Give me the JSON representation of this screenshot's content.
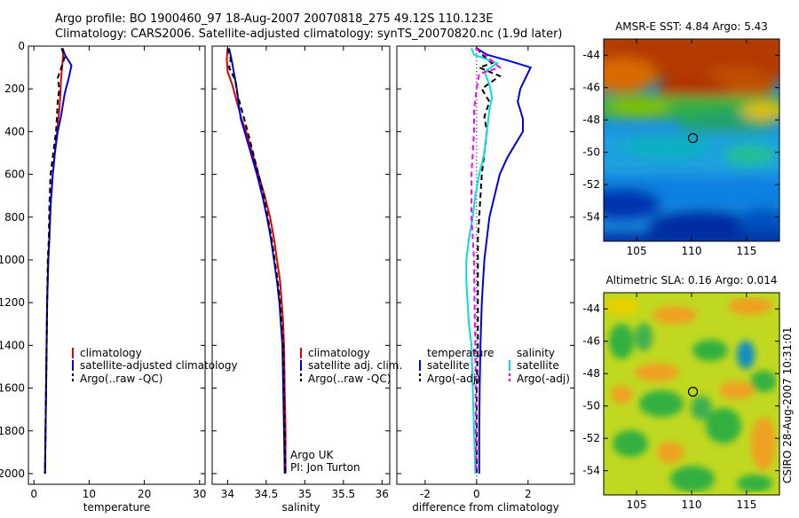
{
  "header": {
    "line1": "Argo profile: BO 1900460_97 18-Aug-2007 20070818_275 49.12S 110.123E",
    "line2": "Climatology: CARS2006. Satellite-adjusted climatology: synTS_20070820.nc (1.9d later)"
  },
  "side_label": "CSIRO 28-Aug-2007 10:31:01",
  "colors": {
    "clim": "#e00000",
    "sat": "#0000e0",
    "argo": "#000000",
    "sal_sat": "#00e0e0",
    "sal_argo": "#ff00ff"
  },
  "chart_data": [
    {
      "type": "line",
      "xlabel": "temperature",
      "xlim": [
        -1,
        31
      ],
      "ylim": [
        2050,
        0
      ],
      "xticks": [
        0,
        10,
        20,
        30
      ],
      "yticks": [
        0,
        200,
        400,
        600,
        800,
        1000,
        1200,
        1400,
        1600,
        1800,
        2000
      ],
      "legend": [
        "climatology",
        "satellite-adjusted climatology",
        "Argo(..raw -QC)"
      ],
      "series": [
        {
          "name": "climatology",
          "color": "#e00000",
          "dash": "",
          "points": [
            [
              5.2,
              10
            ],
            [
              5.3,
              40
            ],
            [
              5.1,
              100
            ],
            [
              4.9,
              160
            ],
            [
              4.8,
              220
            ],
            [
              4.6,
              300
            ],
            [
              4.2,
              400
            ],
            [
              3.8,
              500
            ],
            [
              3.4,
              600
            ],
            [
              3.0,
              750
            ],
            [
              2.8,
              900
            ],
            [
              2.6,
              1000
            ],
            [
              2.4,
              1200
            ],
            [
              2.3,
              1400
            ],
            [
              2.2,
              1600
            ],
            [
              2.1,
              1800
            ],
            [
              2.0,
              2000
            ]
          ]
        },
        {
          "name": "satellite-adjusted climatology",
          "color": "#0000e0",
          "dash": "",
          "points": [
            [
              5.2,
              10
            ],
            [
              5.6,
              40
            ],
            [
              6.8,
              90
            ],
            [
              6.3,
              150
            ],
            [
              5.6,
              220
            ],
            [
              5.2,
              280
            ],
            [
              4.9,
              330
            ],
            [
              4.3,
              400
            ],
            [
              3.8,
              500
            ],
            [
              3.4,
              600
            ],
            [
              3.0,
              750
            ],
            [
              2.8,
              900
            ],
            [
              2.6,
              1000
            ],
            [
              2.4,
              1200
            ],
            [
              2.3,
              1400
            ],
            [
              2.2,
              1600
            ],
            [
              2.1,
              1800
            ],
            [
              2.0,
              2000
            ]
          ]
        },
        {
          "name": "Argo(..raw -QC)",
          "color": "#000000",
          "dash": "6,4",
          "points": [
            [
              5.0,
              10
            ],
            [
              5.6,
              50
            ],
            [
              5.1,
              90
            ],
            [
              4.3,
              150
            ],
            [
              4.6,
              200
            ],
            [
              4.3,
              260
            ],
            [
              4.2,
              320
            ],
            [
              4.0,
              400
            ],
            [
              3.5,
              500
            ],
            [
              3.0,
              600
            ],
            [
              2.8,
              750
            ],
            [
              2.7,
              900
            ],
            [
              2.5,
              1000
            ],
            [
              2.4,
              1200
            ],
            [
              2.3,
              1400
            ],
            [
              2.2,
              1600
            ],
            [
              2.1,
              1800
            ],
            [
              2.0,
              2000
            ]
          ]
        }
      ],
      "annotations": []
    },
    {
      "type": "line",
      "xlabel": "salinity",
      "xlim": [
        33.8,
        36.1
      ],
      "ylim": [
        2050,
        0
      ],
      "xticks": [
        34,
        34.5,
        35,
        35.5,
        36
      ],
      "xticklabels": [
        "34",
        "34.5",
        "35",
        "35.5",
        "36"
      ],
      "yticks": [
        0,
        200,
        400,
        600,
        800,
        1000,
        1200,
        1400,
        1600,
        1800,
        2000
      ],
      "legend": [
        "climatology",
        "satellite adj. clim.",
        "Argo(..raw -QC)"
      ],
      "series": [
        {
          "name": "climatology",
          "color": "#e00000",
          "dash": "",
          "points": [
            [
              34.0,
              10
            ],
            [
              33.99,
              60
            ],
            [
              34.0,
              120
            ],
            [
              34.06,
              180
            ],
            [
              34.12,
              260
            ],
            [
              34.18,
              340
            ],
            [
              34.24,
              400
            ],
            [
              34.32,
              500
            ],
            [
              34.4,
              600
            ],
            [
              34.48,
              700
            ],
            [
              34.55,
              800
            ],
            [
              34.6,
              900
            ],
            [
              34.64,
              1000
            ],
            [
              34.68,
              1100
            ],
            [
              34.7,
              1200
            ],
            [
              34.72,
              1300
            ],
            [
              34.73,
              1400
            ],
            [
              34.74,
              1600
            ],
            [
              34.75,
              1800
            ],
            [
              34.75,
              2000
            ]
          ]
        },
        {
          "name": "satellite adj. clim.",
          "color": "#0000e0",
          "dash": "",
          "points": [
            [
              34.02,
              10
            ],
            [
              34.05,
              60
            ],
            [
              34.08,
              120
            ],
            [
              34.11,
              180
            ],
            [
              34.14,
              260
            ],
            [
              34.17,
              340
            ],
            [
              34.22,
              400
            ],
            [
              34.3,
              500
            ],
            [
              34.38,
              600
            ],
            [
              34.45,
              700
            ],
            [
              34.51,
              800
            ],
            [
              34.56,
              900
            ],
            [
              34.6,
              1000
            ],
            [
              34.64,
              1100
            ],
            [
              34.67,
              1200
            ],
            [
              34.69,
              1300
            ],
            [
              34.71,
              1400
            ],
            [
              34.72,
              1600
            ],
            [
              34.73,
              1800
            ],
            [
              34.74,
              2000
            ]
          ]
        },
        {
          "name": "Argo(..raw -QC)",
          "color": "#000000",
          "dash": "6,4",
          "points": [
            [
              34.0,
              10
            ],
            [
              34.04,
              60
            ],
            [
              34.02,
              100
            ],
            [
              34.1,
              160
            ],
            [
              34.13,
              230
            ],
            [
              34.2,
              320
            ],
            [
              34.26,
              400
            ],
            [
              34.33,
              500
            ],
            [
              34.4,
              600
            ],
            [
              34.47,
              700
            ],
            [
              34.52,
              800
            ],
            [
              34.57,
              900
            ],
            [
              34.61,
              1000
            ],
            [
              34.65,
              1100
            ],
            [
              34.68,
              1200
            ],
            [
              34.7,
              1300
            ],
            [
              34.72,
              1400
            ],
            [
              34.73,
              1600
            ],
            [
              34.74,
              1800
            ],
            [
              34.75,
              2000
            ]
          ]
        }
      ],
      "annotations": [
        "Argo UK",
        "PI: Jon Turton"
      ]
    },
    {
      "type": "line",
      "xlabel": "difference from climatology",
      "xlim": [
        -3.1,
        3.8
      ],
      "ylim": [
        2050,
        0
      ],
      "xticks": [
        -2,
        0,
        2
      ],
      "yticks": [
        0,
        200,
        400,
        600,
        800,
        1000,
        1200,
        1400,
        1600,
        1800,
        2000
      ],
      "legend": [
        "temperature",
        "satellite",
        "Argo(-adj)",
        "salinity",
        "satellite",
        "Argo(-adj)"
      ],
      "series": [
        {
          "name": "temperature satellite",
          "color": "#0000e0",
          "dash": "",
          "points": [
            [
              0.0,
              10
            ],
            [
              0.4,
              40
            ],
            [
              1.3,
              70
            ],
            [
              2.1,
              100
            ],
            [
              1.9,
              150
            ],
            [
              1.7,
              200
            ],
            [
              1.6,
              260
            ],
            [
              1.8,
              340
            ],
            [
              1.8,
              400
            ],
            [
              1.5,
              460
            ],
            [
              1.2,
              520
            ],
            [
              0.9,
              600
            ],
            [
              0.7,
              700
            ],
            [
              0.5,
              800
            ],
            [
              0.4,
              900
            ],
            [
              0.3,
              1000
            ],
            [
              0.25,
              1100
            ],
            [
              0.2,
              1200
            ],
            [
              0.15,
              1400
            ],
            [
              0.12,
              1600
            ],
            [
              0.1,
              1800
            ],
            [
              0.1,
              2000
            ]
          ]
        },
        {
          "name": "temperature Argo(-adj)",
          "color": "#000000",
          "dash": "6,4",
          "points": [
            [
              0.0,
              10
            ],
            [
              0.2,
              40
            ],
            [
              0.6,
              80
            ],
            [
              0.1,
              100
            ],
            [
              0.9,
              140
            ],
            [
              0.2,
              200
            ],
            [
              0.5,
              260
            ],
            [
              0.3,
              330
            ],
            [
              0.4,
              400
            ],
            [
              0.3,
              500
            ],
            [
              0.2,
              600
            ],
            [
              0.15,
              700
            ],
            [
              0.1,
              800
            ],
            [
              0.05,
              900
            ],
            [
              0.05,
              1000
            ],
            [
              0.05,
              1200
            ],
            [
              0.05,
              1400
            ],
            [
              0.0,
              1600
            ],
            [
              0.0,
              1800
            ],
            [
              0.0,
              2000
            ]
          ]
        },
        {
          "name": "salinity satellite",
          "color": "#00e0e0",
          "dash": "",
          "points": [
            [
              -0.2,
              10
            ],
            [
              -0.1,
              40
            ],
            [
              0.8,
              80
            ],
            [
              0.3,
              120
            ],
            [
              0.5,
              180
            ],
            [
              0.6,
              240
            ],
            [
              0.5,
              300
            ],
            [
              0.4,
              400
            ],
            [
              0.3,
              500
            ],
            [
              0.1,
              600
            ],
            [
              -0.05,
              700
            ],
            [
              -0.15,
              800
            ],
            [
              -0.3,
              900
            ],
            [
              -0.4,
              1000
            ],
            [
              -0.4,
              1100
            ],
            [
              -0.35,
              1200
            ],
            [
              -0.3,
              1300
            ],
            [
              -0.2,
              1400
            ],
            [
              -0.15,
              1600
            ],
            [
              -0.1,
              1800
            ],
            [
              -0.05,
              2000
            ]
          ]
        },
        {
          "name": "salinity Argo(-adj)",
          "color": "#ff00ff",
          "dash": "6,4",
          "points": [
            [
              -0.05,
              10
            ],
            [
              0.3,
              40
            ],
            [
              0.9,
              100
            ],
            [
              0.1,
              130
            ],
            [
              0.0,
              200
            ],
            [
              -0.1,
              300
            ],
            [
              -0.1,
              400
            ],
            [
              -0.15,
              500
            ],
            [
              -0.2,
              600
            ],
            [
              -0.2,
              700
            ],
            [
              -0.2,
              800
            ],
            [
              -0.15,
              900
            ],
            [
              -0.1,
              1000
            ],
            [
              -0.08,
              1200
            ],
            [
              -0.05,
              1400
            ],
            [
              -0.04,
              1600
            ],
            [
              -0.03,
              1800
            ],
            [
              -0.02,
              2000
            ]
          ]
        }
      ],
      "annotations": []
    },
    {
      "type": "heatmap",
      "title": "AMSR-E SST: 4.84 Argo: 5.43",
      "xlim": [
        102,
        118
      ],
      "ylim": [
        -55.5,
        -43
      ],
      "xticks": [
        105,
        110,
        115
      ],
      "yticks": [
        -44,
        -46,
        -48,
        -50,
        -52,
        -54
      ],
      "marker": [
        110.123,
        -49.12
      ]
    },
    {
      "type": "heatmap",
      "title": "Altimetric SLA: 0.16 Argo: 0.014",
      "xlim": [
        102,
        118
      ],
      "ylim": [
        -55.5,
        -43
      ],
      "xticks": [
        105,
        110,
        115
      ],
      "yticks": [
        -44,
        -46,
        -48,
        -50,
        -52,
        -54
      ],
      "marker": [
        110.123,
        -49.12
      ]
    }
  ]
}
